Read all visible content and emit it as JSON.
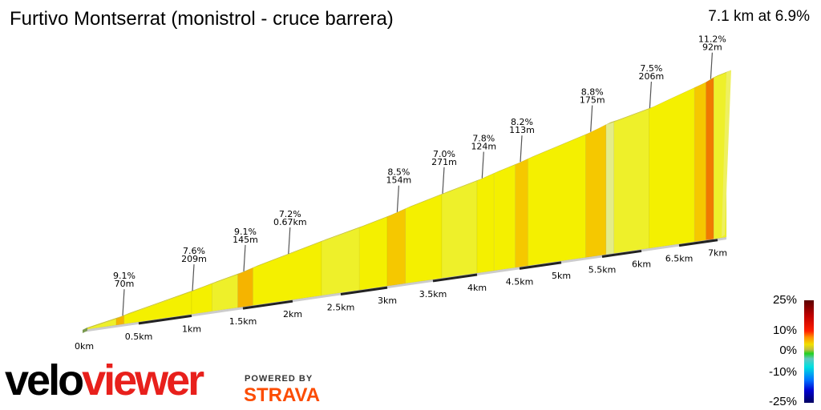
{
  "header": {
    "title": "Furtivo Montserrat (monistrol - cruce barrera)",
    "summary": "7.1 km at 6.9%"
  },
  "chart_data": {
    "type": "area",
    "title": "Furtivo Montserrat (monistrol - cruce barrera)",
    "x_unit": "km",
    "xlim": [
      0,
      7.1
    ],
    "x_ticks": [
      "0km",
      "0.5km",
      "1km",
      "1.5km",
      "2km",
      "2.5km",
      "3km",
      "3.5km",
      "4km",
      "4.5km",
      "5km",
      "5.5km",
      "6km",
      "6.5km",
      "7km"
    ],
    "segments": [
      {
        "from": 0,
        "to": 0.3,
        "gradient": 6.5
      },
      {
        "from": 0.3,
        "to": 0.37,
        "gradient": 9.1
      },
      {
        "from": 0.37,
        "to": 1.0,
        "gradient": 7.0
      },
      {
        "from": 1.0,
        "to": 1.2,
        "gradient": 7.6
      },
      {
        "from": 1.2,
        "to": 1.45,
        "gradient": 6.8
      },
      {
        "from": 1.45,
        "to": 1.6,
        "gradient": 9.1
      },
      {
        "from": 1.6,
        "to": 2.3,
        "gradient": 7.2
      },
      {
        "from": 2.3,
        "to": 2.7,
        "gradient": 6.5
      },
      {
        "from": 2.7,
        "to": 3.0,
        "gradient": 7.0
      },
      {
        "from": 3.0,
        "to": 3.2,
        "gradient": 8.5
      },
      {
        "from": 3.2,
        "to": 3.6,
        "gradient": 7.0
      },
      {
        "from": 3.6,
        "to": 4.0,
        "gradient": 6.5
      },
      {
        "from": 4.0,
        "to": 4.2,
        "gradient": 7.8
      },
      {
        "from": 4.2,
        "to": 4.45,
        "gradient": 7.0
      },
      {
        "from": 4.45,
        "to": 4.6,
        "gradient": 8.2
      },
      {
        "from": 4.6,
        "to": 5.3,
        "gradient": 7.0
      },
      {
        "from": 5.3,
        "to": 5.55,
        "gradient": 8.8
      },
      {
        "from": 5.55,
        "to": 5.65,
        "gradient": 4.5
      },
      {
        "from": 5.65,
        "to": 6.1,
        "gradient": 5.5
      },
      {
        "from": 6.1,
        "to": 6.7,
        "gradient": 7.5
      },
      {
        "from": 6.7,
        "to": 6.85,
        "gradient": 8.0
      },
      {
        "from": 6.85,
        "to": 6.95,
        "gradient": 11.2
      },
      {
        "from": 6.95,
        "to": 7.1,
        "gradient": 6.5
      }
    ],
    "annotations": [
      {
        "km": 0.35,
        "gradient": "9.1%",
        "length": "70m"
      },
      {
        "km": 1.0,
        "gradient": "7.6%",
        "length": "209m"
      },
      {
        "km": 1.5,
        "gradient": "9.1%",
        "length": "145m"
      },
      {
        "km": 1.95,
        "gradient": "7.2%",
        "length": "0.67km"
      },
      {
        "km": 3.1,
        "gradient": "8.5%",
        "length": "154m"
      },
      {
        "km": 3.6,
        "gradient": "7.0%",
        "length": "271m"
      },
      {
        "km": 4.05,
        "gradient": "7.8%",
        "length": "124m"
      },
      {
        "km": 4.5,
        "gradient": "8.2%",
        "length": "113m"
      },
      {
        "km": 5.35,
        "gradient": "8.8%",
        "length": "175m"
      },
      {
        "km": 6.1,
        "gradient": "7.5%",
        "length": "206m"
      },
      {
        "km": 6.9,
        "gradient": "11.2%",
        "length": "92m"
      }
    ],
    "legend": {
      "labels": [
        "25%",
        "10%",
        "0%",
        "-10%",
        "-25%"
      ],
      "placement": "bottom-right"
    }
  },
  "branding": {
    "logo_velo": "velo",
    "logo_viewer": "viewer",
    "powered_by": "POWERED BY",
    "strava": "STRAVA"
  }
}
